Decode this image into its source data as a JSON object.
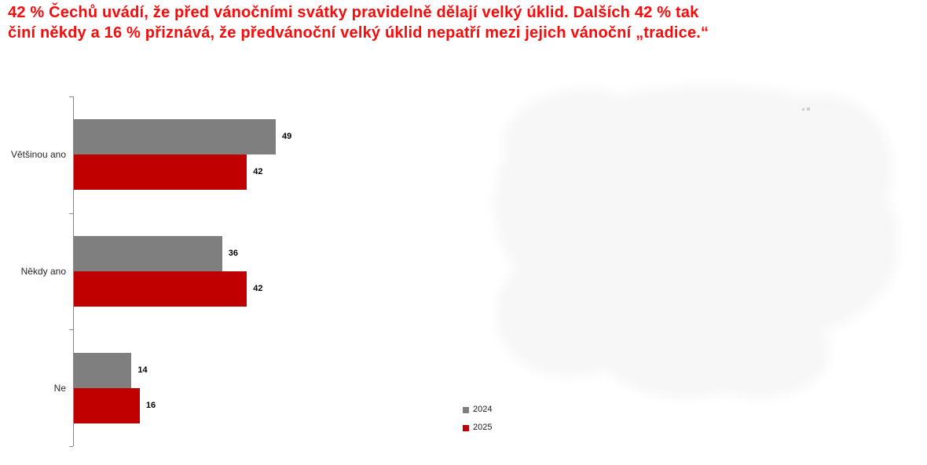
{
  "header": {
    "title_lines": [
      "42 % Čechů uvádí, že před vánočními svátky pravidelně dělají velký úklid. Dalších 42 % tak",
      "činí někdy a 16 % přiznává, že předvánoční velký úklid nepatří mezi jejich vánoční „tradice.“"
    ],
    "color": "#fa0a0a"
  },
  "chart_data": {
    "type": "bar",
    "orientation": "horizontal",
    "title": "",
    "categories": [
      "Většinou ano",
      "Někdy ano",
      "Ne"
    ],
    "series": [
      {
        "name": "2024",
        "color": "#7f7f7f",
        "values": [
          49,
          36,
          14
        ]
      },
      {
        "name": "2025",
        "color": "#c00000",
        "values": [
          42,
          42,
          16
        ]
      }
    ],
    "xlim": [
      0,
      60
    ],
    "value_labels": true,
    "grid": false,
    "legend_position": "bottom-center",
    "axis_color": "#8a8a8a"
  },
  "decor": {
    "watermark_color": "#f7f7f7"
  }
}
